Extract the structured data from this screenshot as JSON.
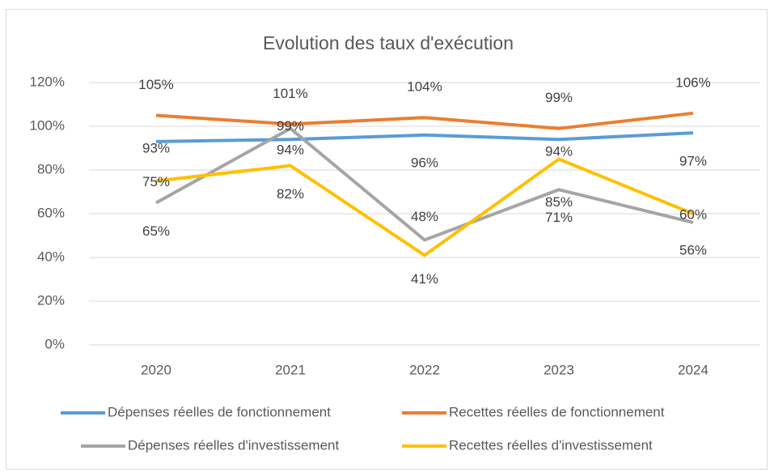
{
  "chart_data": {
    "type": "line",
    "title": "Evolution des taux d'exécution",
    "categories": [
      "2020",
      "2021",
      "2022",
      "2023",
      "2024"
    ],
    "series": [
      {
        "name": "Dépenses réelles de fonctionnement",
        "color": "#5b9bd5",
        "values": [
          93,
          94,
          96,
          94,
          97
        ],
        "value_labels": [
          "93%",
          "94%",
          "96%",
          "94%",
          "97%"
        ]
      },
      {
        "name": "Recettes réelles de fonctionnement",
        "color": "#ed7d31",
        "values": [
          105,
          101,
          104,
          99,
          106
        ],
        "value_labels": [
          "105%",
          "101%",
          "104%",
          "99%",
          "106%"
        ]
      },
      {
        "name": "Dépenses réelles d'investissement",
        "color": "#a5a5a5",
        "values": [
          65,
          99,
          48,
          71,
          56
        ],
        "value_labels": [
          "65%",
          "99%",
          "48%",
          "71%",
          "56%"
        ]
      },
      {
        "name": "Recettes réelles d'investissement",
        "color": "#ffc000",
        "values": [
          75,
          82,
          41,
          85,
          60
        ],
        "value_labels": [
          "75%",
          "82%",
          "41%",
          "85%",
          "60%"
        ]
      }
    ],
    "ylim": [
      0,
      120
    ],
    "yticks": [
      {
        "value": 0,
        "label": "0%"
      },
      {
        "value": 20,
        "label": "20%"
      },
      {
        "value": 40,
        "label": "40%"
      },
      {
        "value": 60,
        "label": "60%"
      },
      {
        "value": 80,
        "label": "80%"
      },
      {
        "value": 100,
        "label": "100%"
      },
      {
        "value": 120,
        "label": "120%"
      }
    ],
    "grid": true,
    "legend": "bottom"
  }
}
